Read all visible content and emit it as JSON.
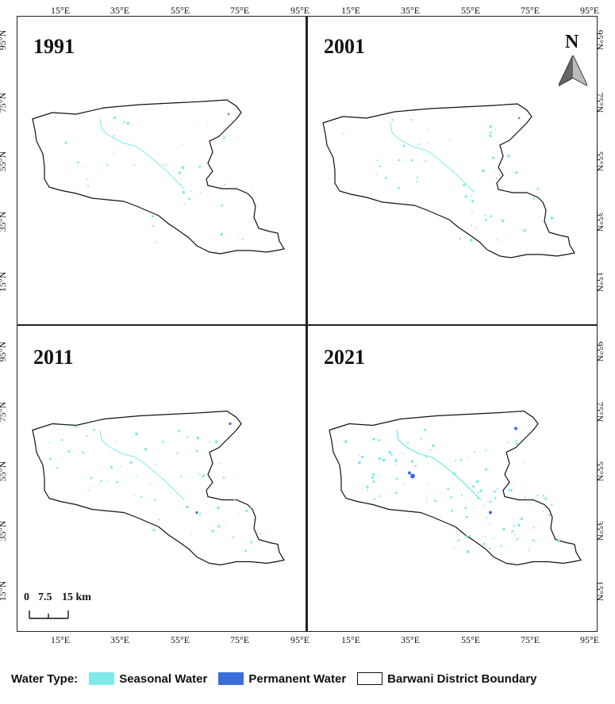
{
  "panels": [
    {
      "year": "1991"
    },
    {
      "year": "2001"
    },
    {
      "year": "2011"
    },
    {
      "year": "2021"
    }
  ],
  "lon_ticks": [
    "15°E",
    "35°E",
    "55°E",
    "75°E",
    "95°E"
  ],
  "lat_ticks": [
    "95°N",
    "75°N",
    "55°N",
    "35°N",
    "15°N"
  ],
  "north_arrow": {
    "label": "N"
  },
  "scale_bar": {
    "labels": [
      "0",
      "7.5",
      "15 km"
    ]
  },
  "legend": {
    "title": "Water Type:",
    "items": [
      {
        "label": "Seasonal Water",
        "color": "#7fe9ec"
      },
      {
        "label": "Permanent Water",
        "color": "#3a6fd8"
      },
      {
        "label": "Barwani District Boundary",
        "color": "#ffffff"
      }
    ]
  },
  "colors": {
    "seasonal": "#7fe9ec",
    "permanent": "#3a6fd8",
    "boundary": "#111111"
  }
}
